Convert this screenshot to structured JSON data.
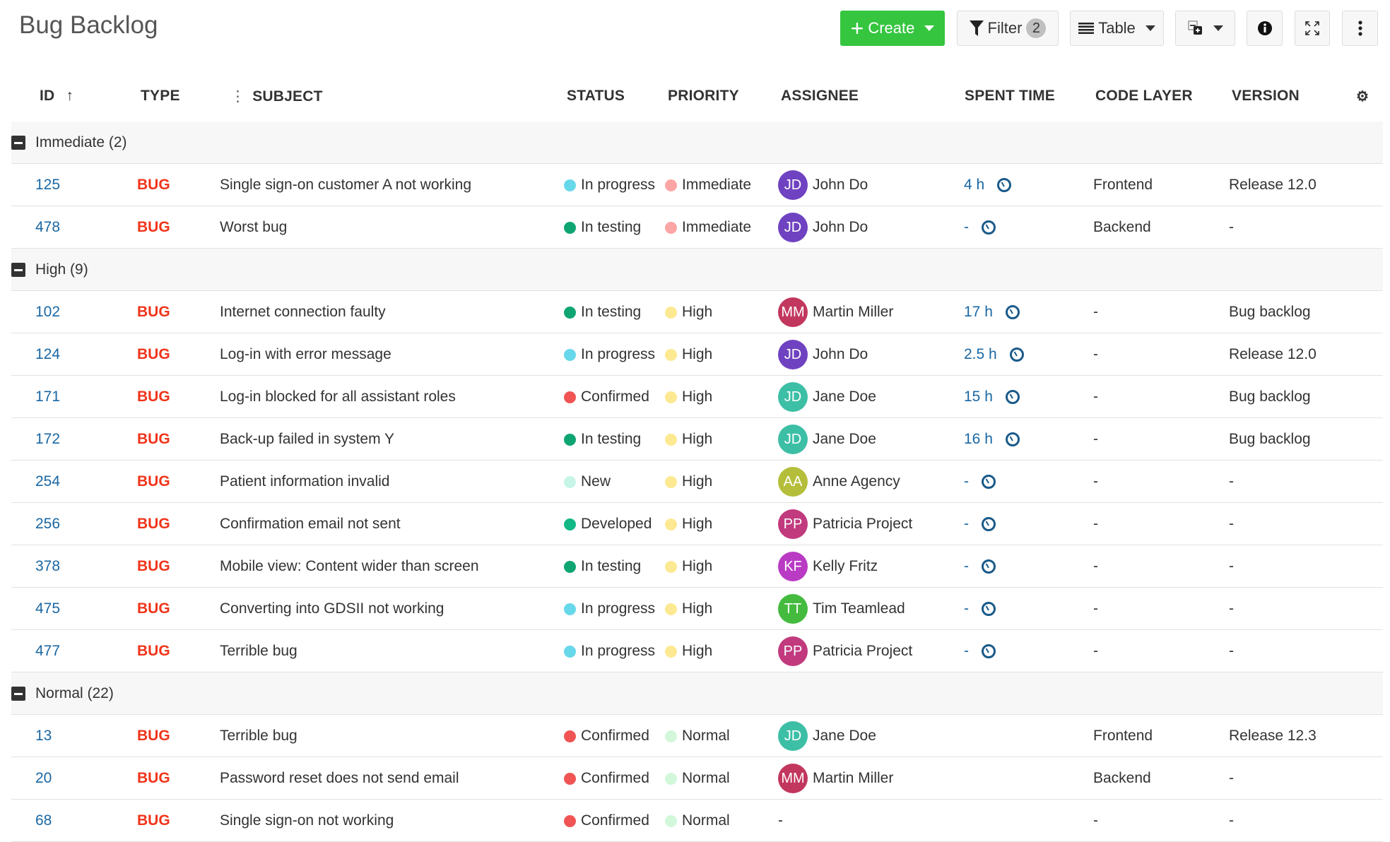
{
  "header": {
    "title": "Bug Backlog",
    "create_label": "Create",
    "filter_label": "Filter",
    "filter_count": "2",
    "view_label": "Table"
  },
  "columns": {
    "id": "ID",
    "type": "TYPE",
    "subject": "SUBJECT",
    "status": "STATUS",
    "priority": "PRIORITY",
    "assignee": "ASSIGNEE",
    "spent_time": "SPENT TIME",
    "code_layer": "CODE LAYER",
    "version": "VERSION"
  },
  "colors": {
    "status": {
      "In progress": "#67d8ea",
      "In testing": "#0ea572",
      "Confirmed": "#f05454",
      "New": "#c6f5e8",
      "Developed": "#12b886"
    },
    "priority": {
      "Immediate": "#fca5a5",
      "High": "#fde992",
      "Normal": "#d3f7da"
    },
    "avatar": {
      "JD-purple": "#6f42c1",
      "JD-teal": "#3dbfa6",
      "MM": "#c2375e",
      "AA": "#b5be3a",
      "PP": "#c13a7e",
      "KF": "#b93bc4",
      "TT": "#44bb3e"
    }
  },
  "groups": [
    {
      "label": "Immediate (2)",
      "rows": [
        {
          "id": "125",
          "type": "BUG",
          "subject": "Single sign-on customer A not working",
          "status": "In progress",
          "priority": "Immediate",
          "initials": "JD",
          "avatar": "JD-purple",
          "assignee": "John Do",
          "spent": "4 h",
          "clock": true,
          "code_layer": "Frontend",
          "version": "Release 12.0"
        },
        {
          "id": "478",
          "type": "BUG",
          "subject": "Worst bug",
          "status": "In testing",
          "priority": "Immediate",
          "initials": "JD",
          "avatar": "JD-purple",
          "assignee": "John Do",
          "spent": "-",
          "clock": true,
          "code_layer": "Backend",
          "version": "-"
        }
      ]
    },
    {
      "label": "High (9)",
      "rows": [
        {
          "id": "102",
          "type": "BUG",
          "subject": "Internet connection faulty",
          "status": "In testing",
          "priority": "High",
          "initials": "MM",
          "avatar": "MM",
          "assignee": "Martin Miller",
          "spent": "17 h",
          "clock": true,
          "code_layer": "-",
          "version": "Bug backlog"
        },
        {
          "id": "124",
          "type": "BUG",
          "subject": "Log-in with error message",
          "status": "In progress",
          "priority": "High",
          "initials": "JD",
          "avatar": "JD-purple",
          "assignee": "John Do",
          "spent": "2.5 h",
          "clock": true,
          "code_layer": "-",
          "version": "Release 12.0"
        },
        {
          "id": "171",
          "type": "BUG",
          "subject": "Log-in blocked for all assistant roles",
          "status": "Confirmed",
          "priority": "High",
          "initials": "JD",
          "avatar": "JD-teal",
          "assignee": "Jane Doe",
          "spent": "15 h",
          "clock": true,
          "code_layer": "-",
          "version": "Bug backlog"
        },
        {
          "id": "172",
          "type": "BUG",
          "subject": "Back-up failed in system Y",
          "status": "In testing",
          "priority": "High",
          "initials": "JD",
          "avatar": "JD-teal",
          "assignee": "Jane Doe",
          "spent": "16 h",
          "clock": true,
          "code_layer": "-",
          "version": "Bug backlog"
        },
        {
          "id": "254",
          "type": "BUG",
          "subject": "Patient information invalid",
          "status": "New",
          "priority": "High",
          "initials": "AA",
          "avatar": "AA",
          "assignee": "Anne Agency",
          "spent": "-",
          "clock": true,
          "code_layer": "-",
          "version": "-"
        },
        {
          "id": "256",
          "type": "BUG",
          "subject": "Confirmation email not sent",
          "status": "Developed",
          "priority": "High",
          "initials": "PP",
          "avatar": "PP",
          "assignee": "Patricia Project",
          "spent": "-",
          "clock": true,
          "code_layer": "-",
          "version": "-"
        },
        {
          "id": "378",
          "type": "BUG",
          "subject": "Mobile view: Content wider than screen",
          "status": "In testing",
          "priority": "High",
          "initials": "KF",
          "avatar": "KF",
          "assignee": "Kelly Fritz",
          "spent": "-",
          "clock": true,
          "code_layer": "-",
          "version": "-"
        },
        {
          "id": "475",
          "type": "BUG",
          "subject": "Converting into GDSII not working",
          "status": "In progress",
          "priority": "High",
          "initials": "TT",
          "avatar": "TT",
          "assignee": "Tim Teamlead",
          "spent": "-",
          "clock": true,
          "code_layer": "-",
          "version": "-"
        },
        {
          "id": "477",
          "type": "BUG",
          "subject": "Terrible bug",
          "status": "In progress",
          "priority": "High",
          "initials": "PP",
          "avatar": "PP",
          "assignee": "Patricia Project",
          "spent": "-",
          "clock": true,
          "code_layer": "-",
          "version": "-"
        }
      ]
    },
    {
      "label": "Normal (22)",
      "rows": [
        {
          "id": "13",
          "type": "BUG",
          "subject": "Terrible bug",
          "status": "Confirmed",
          "priority": "Normal",
          "initials": "JD",
          "avatar": "JD-teal",
          "assignee": "Jane Doe",
          "spent": "",
          "clock": false,
          "code_layer": "Frontend",
          "version": "Release 12.3"
        },
        {
          "id": "20",
          "type": "BUG",
          "subject": "Password reset does not send email",
          "status": "Confirmed",
          "priority": "Normal",
          "initials": "MM",
          "avatar": "MM",
          "assignee": "Martin Miller",
          "spent": "",
          "clock": false,
          "code_layer": "Backend",
          "version": "-"
        },
        {
          "id": "68",
          "type": "BUG",
          "subject": "Single sign-on not working",
          "status": "Confirmed",
          "priority": "Normal",
          "initials": "",
          "avatar": "",
          "assignee": "-",
          "spent": "",
          "clock": false,
          "code_layer": "-",
          "version": "-"
        }
      ]
    }
  ]
}
